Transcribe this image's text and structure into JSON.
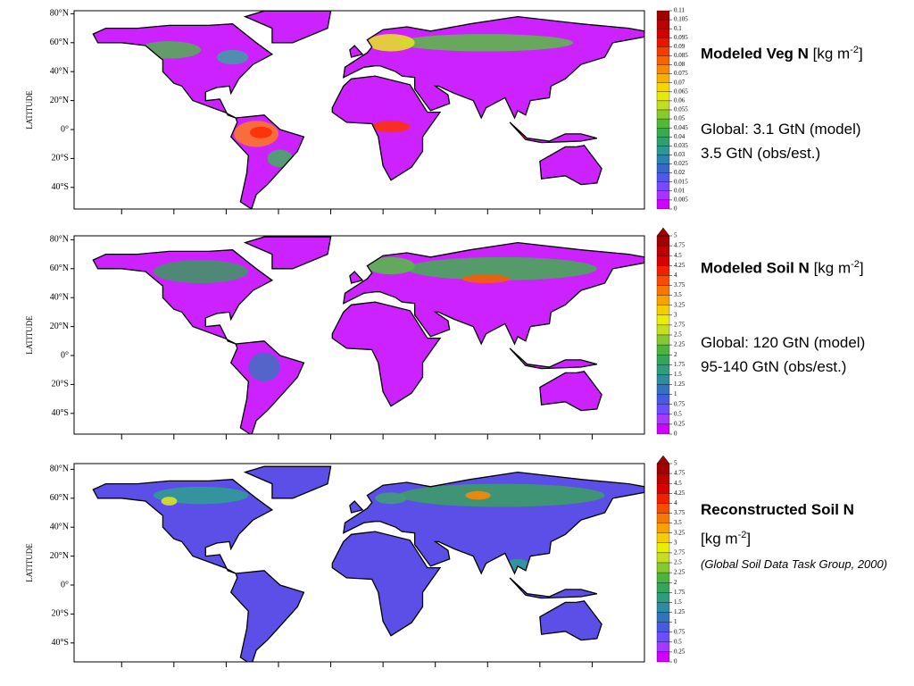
{
  "panels": [
    {
      "y_axis_label": "LATITUDE",
      "yticks": [
        {
          "value": 80,
          "label": "80°N"
        },
        {
          "value": 60,
          "label": "60°N"
        },
        {
          "value": 40,
          "label": "40°N"
        },
        {
          "value": 20,
          "label": "20°N"
        },
        {
          "value": 0,
          "label": "0°"
        },
        {
          "value": -20,
          "label": "20°S"
        },
        {
          "value": -40,
          "label": "40°S"
        }
      ],
      "colorbar_ticks": [
        0.11,
        0.105,
        0.1,
        0.095,
        0.09,
        0.085,
        0.08,
        0.075,
        0.07,
        0.065,
        0.06,
        0.055,
        0.05,
        0.045,
        0.04,
        0.035,
        0.03,
        0.025,
        0.02,
        0.015,
        0.01,
        0.005,
        0
      ],
      "title": "Modeled Veg N",
      "units_prefix": "[kg m",
      "units_exponent": "-2",
      "units_suffix": "]",
      "notes": [
        "Global: 3.1 GtN (model)",
        "3.5 GtN (obs/est.)"
      ]
    },
    {
      "y_axis_label": "LATITUDE",
      "yticks": [
        {
          "value": 80,
          "label": "80°N"
        },
        {
          "value": 60,
          "label": "60°N"
        },
        {
          "value": 40,
          "label": "40°N"
        },
        {
          "value": 20,
          "label": "20°N"
        },
        {
          "value": 0,
          "label": "0°"
        },
        {
          "value": -20,
          "label": "20°S"
        },
        {
          "value": -40,
          "label": "40°S"
        }
      ],
      "colorbar_ticks": [
        5,
        4.75,
        4.5,
        4.25,
        4,
        3.75,
        3.5,
        3.25,
        3,
        2.75,
        2.5,
        2.25,
        2,
        1.75,
        1.5,
        1.25,
        1,
        0.75,
        0.5,
        0.25,
        0
      ],
      "title": "Modeled Soil N",
      "units_prefix": "[kg m",
      "units_exponent": "-2",
      "units_suffix": "]",
      "notes": [
        "Global: 120 GtN (model)",
        "95-140 GtN (obs/est.)"
      ]
    },
    {
      "y_axis_label": "LATITUDE",
      "yticks": [
        {
          "value": 80,
          "label": "80°N"
        },
        {
          "value": 60,
          "label": "60°N"
        },
        {
          "value": 40,
          "label": "40°N"
        },
        {
          "value": 20,
          "label": "20°N"
        },
        {
          "value": 0,
          "label": "0°"
        },
        {
          "value": -20,
          "label": "20°S"
        },
        {
          "value": -40,
          "label": "40°S"
        }
      ],
      "colorbar_ticks": [
        5,
        4.75,
        4.5,
        4.25,
        4,
        3.75,
        3.5,
        3.25,
        3,
        2.75,
        2.5,
        2.25,
        2,
        1.75,
        1.5,
        1.25,
        1,
        0.75,
        0.5,
        0.25,
        0
      ],
      "title": "Reconstructed Soil N",
      "units_prefix": "[kg m",
      "units_exponent": "-2",
      "units_suffix": "]",
      "notes": [
        "(Global Soil Data Task Group, 2000)"
      ]
    }
  ]
}
